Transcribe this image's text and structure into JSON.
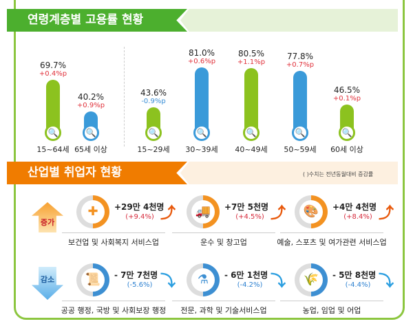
{
  "section1": {
    "title": "연령계층별 고용률 현황"
  },
  "age_groups": [
    {
      "label": "15~64세",
      "rate": "69.7%",
      "change": "+0.4%p",
      "value": 69.7,
      "color": "#8cc21f",
      "change_color": "#e0303a"
    },
    {
      "label": "65세 이상",
      "rate": "40.2%",
      "change": "+0.9%p",
      "value": 40.2,
      "color": "#3a9ad9",
      "change_color": "#e0303a"
    },
    {
      "label": "15~29세",
      "rate": "43.6%",
      "change": "-0.9%p",
      "value": 43.6,
      "color": "#8cc21f",
      "change_color": "#3a8fd6"
    },
    {
      "label": "30~39세",
      "rate": "81.0%",
      "change": "+0.6%p",
      "value": 81.0,
      "color": "#3a9ad9",
      "change_color": "#e0303a"
    },
    {
      "label": "40~49세",
      "rate": "80.5%",
      "change": "+1.1%p",
      "value": 80.5,
      "color": "#8cc21f",
      "change_color": "#e0303a"
    },
    {
      "label": "50~59세",
      "rate": "77.8%",
      "change": "+0.7%p",
      "value": 77.8,
      "color": "#3a9ad9",
      "change_color": "#e0303a"
    },
    {
      "label": "60세 이상",
      "rate": "46.5%",
      "change": "+0.1%p",
      "value": 46.5,
      "color": "#8cc21f",
      "change_color": "#e0303a"
    }
  ],
  "section2": {
    "title": "산업별 취업자 현황",
    "note": "( )수치는 전년동월대비 증감률",
    "increase_label": "증가",
    "decrease_label": "감소"
  },
  "industries": [
    {
      "label": "보건업 및 사회복지 서비스업",
      "value": "+29만 4천명",
      "change": "(+9.4%)",
      "icon": "first-aid-kit-icon",
      "glyph": "✚",
      "trend": "up"
    },
    {
      "label": "운수 및 창고업",
      "value": "+7만 5천명",
      "change": "(+4.5%)",
      "icon": "truck-icon",
      "glyph": "🚚",
      "trend": "up"
    },
    {
      "label": "예술, 스포츠 및 여가관련 서비스업",
      "value": "+4만 4천명",
      "change": "(+8.4%)",
      "icon": "palette-icon",
      "glyph": "🎨",
      "trend": "up"
    },
    {
      "label": "공공 행정, 국방 및 사회보장 행정",
      "value": "- 7만 7천명",
      "change": "(-5.6%)",
      "icon": "scroll-icon",
      "glyph": "📜",
      "trend": "down"
    },
    {
      "label": "전문, 과학 및 기술서비스업",
      "value": "- 6만 1천명",
      "change": "(-4.2%)",
      "icon": "flask-icon",
      "glyph": "⚗",
      "trend": "down"
    },
    {
      "label": "농업, 임업 및 어업",
      "value": "- 5만 8천명",
      "change": "(-4.4%)",
      "icon": "wheat-icon",
      "glyph": "🌾",
      "trend": "down"
    }
  ],
  "colors": {
    "green": "#4caf2e",
    "orange": "#f07c00",
    "up": "#e8590c",
    "down": "#2a9ee0",
    "up_text": "#d6283a",
    "down_text": "#2a7fd0"
  }
}
